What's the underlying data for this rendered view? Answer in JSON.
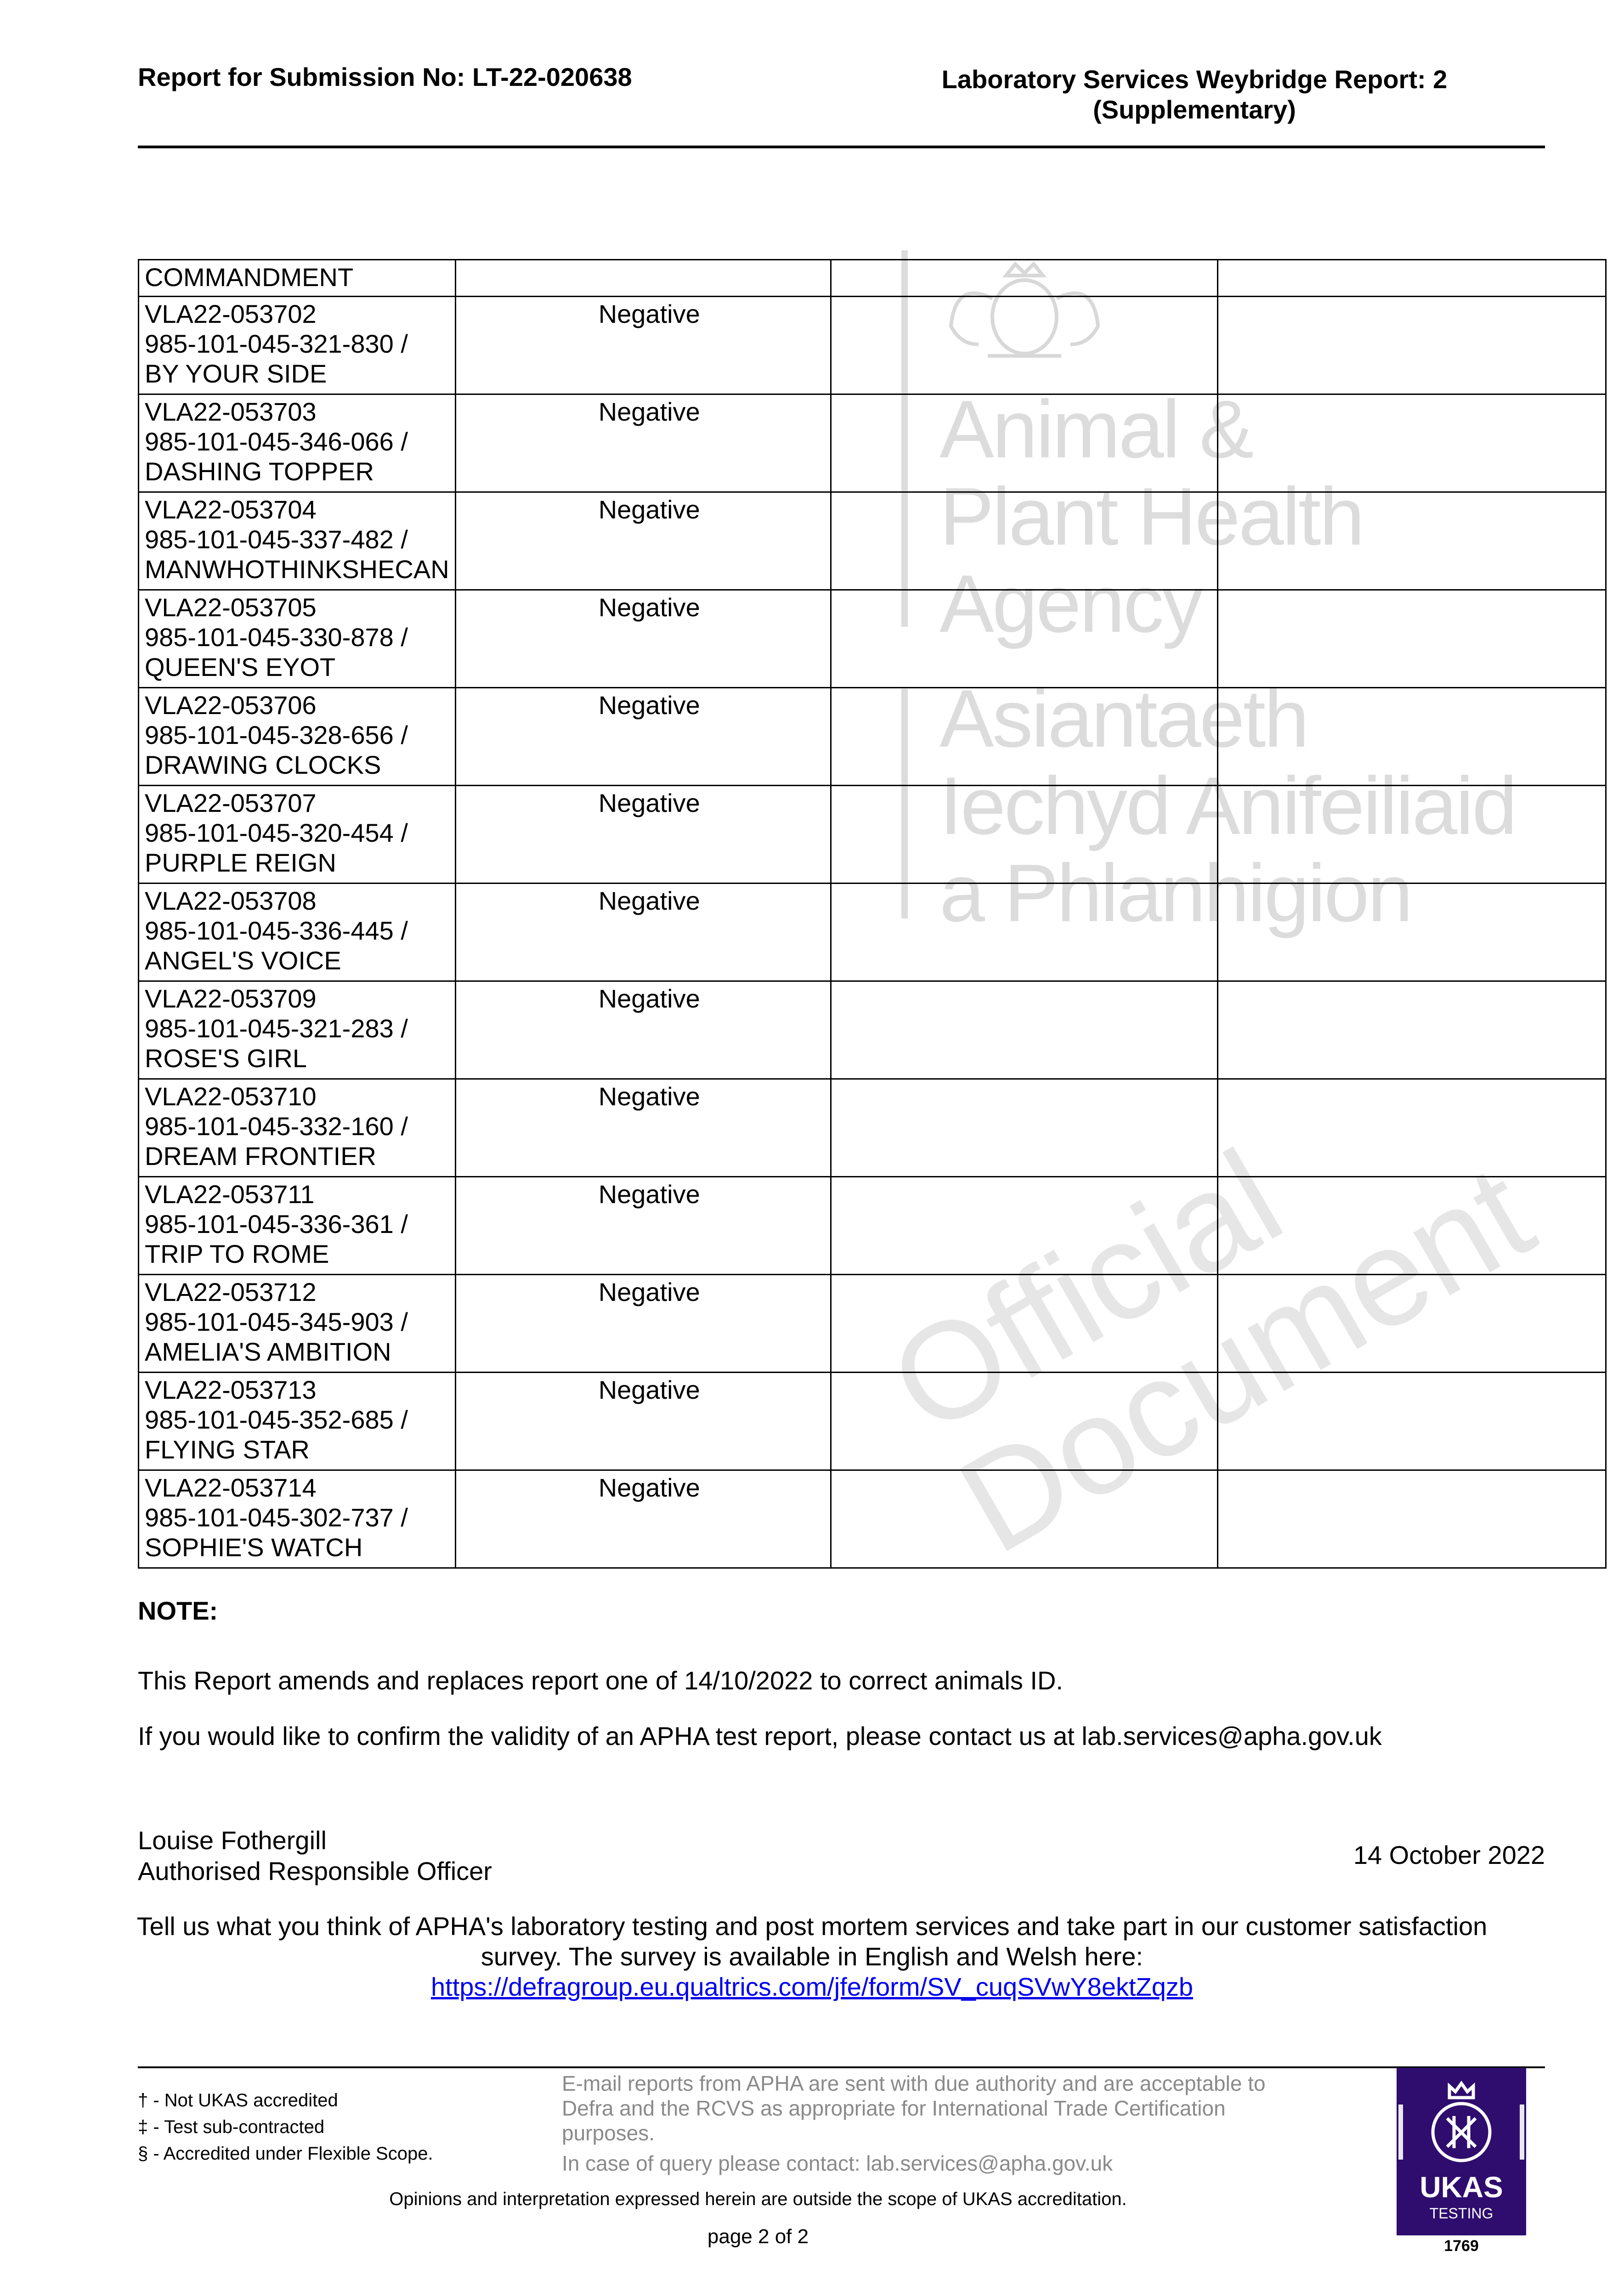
{
  "header": {
    "submission": "Report for Submission No: LT-22-020638",
    "report_title_line1": "Laboratory Services Weybridge Report: 2",
    "report_title_line2": "(Supplementary)"
  },
  "watermark": {
    "agency_en": [
      "Animal &",
      "Plant Health",
      "Agency"
    ],
    "agency_cy": [
      "Asiantaeth",
      "Iechyd Anifeiliaid",
      "a Phlanhigion"
    ],
    "diagonal": [
      "Official",
      "Document"
    ],
    "crest_icon": "royal-coat-of-arms"
  },
  "table": {
    "continuation_label": "COMMANDMENT",
    "rows": [
      {
        "ref": "VLA22-053702",
        "id": "985-101-045-321-830 /",
        "name": "BY YOUR SIDE",
        "result": "Negative"
      },
      {
        "ref": "VLA22-053703",
        "id": "985-101-045-346-066 /",
        "name": "DASHING TOPPER",
        "result": "Negative"
      },
      {
        "ref": "VLA22-053704",
        "id": "985-101-045-337-482 /",
        "name": "MANWHOTHINKSHECAN",
        "result": "Negative"
      },
      {
        "ref": "VLA22-053705",
        "id": "985-101-045-330-878 /",
        "name": "QUEEN'S EYOT",
        "result": "Negative"
      },
      {
        "ref": "VLA22-053706",
        "id": "985-101-045-328-656 /",
        "name": "DRAWING CLOCKS",
        "result": "Negative"
      },
      {
        "ref": "VLA22-053707",
        "id": "985-101-045-320-454 /",
        "name": "PURPLE REIGN",
        "result": "Negative"
      },
      {
        "ref": "VLA22-053708",
        "id": "985-101-045-336-445 /",
        "name": "ANGEL'S VOICE",
        "result": "Negative"
      },
      {
        "ref": "VLA22-053709",
        "id": "985-101-045-321-283 /",
        "name": "ROSE'S GIRL",
        "result": "Negative"
      },
      {
        "ref": "VLA22-053710",
        "id": "985-101-045-332-160 /",
        "name": "DREAM FRONTIER",
        "result": "Negative"
      },
      {
        "ref": "VLA22-053711",
        "id": "985-101-045-336-361 /",
        "name": "TRIP TO ROME",
        "result": "Negative"
      },
      {
        "ref": "VLA22-053712",
        "id": "985-101-045-345-903 /",
        "name": "AMELIA'S AMBITION",
        "result": "Negative"
      },
      {
        "ref": "VLA22-053713",
        "id": "985-101-045-352-685 /",
        "name": "FLYING STAR",
        "result": "Negative"
      },
      {
        "ref": "VLA22-053714",
        "id": "985-101-045-302-737 /",
        "name": "SOPHIE'S WATCH",
        "result": "Negative"
      }
    ]
  },
  "note": {
    "heading": "NOTE:",
    "amend": "This Report amends and replaces report one of 14/10/2022 to correct animals ID.",
    "validity": "If you would like to confirm the validity of an APHA test report, please contact us at lab.services@apha.gov.uk"
  },
  "signature": {
    "name": "Louise Fothergill",
    "role": "Authorised Responsible Officer",
    "date": "14 October 2022"
  },
  "survey": {
    "line1": "Tell us what you think of APHA's laboratory testing and post mortem services and take part in our customer satisfaction",
    "line2": "survey. The survey is available in English and Welsh here:",
    "link": "https://defragroup.eu.qualtrics.com/jfe/form/SV_cuqSVwY8ektZqzb"
  },
  "footer": {
    "legend": [
      "† - Not UKAS accredited",
      "‡ - Test sub-contracted",
      "§ - Accredited under Flexible Scope."
    ],
    "email_notice": [
      "E-mail reports from APHA are sent with due authority and are acceptable to",
      "Defra and the RCVS as appropriate for International Trade Certification",
      "purposes."
    ],
    "query": "In case of query please contact: lab.services@apha.gov.uk",
    "opinions": "Opinions and interpretation expressed herein are outside the scope of UKAS accreditation.",
    "page": "page 2 of 2",
    "ukas": {
      "name": "UKAS",
      "sub": "TESTING",
      "number": "1769",
      "color": "#2e0d6e"
    }
  }
}
